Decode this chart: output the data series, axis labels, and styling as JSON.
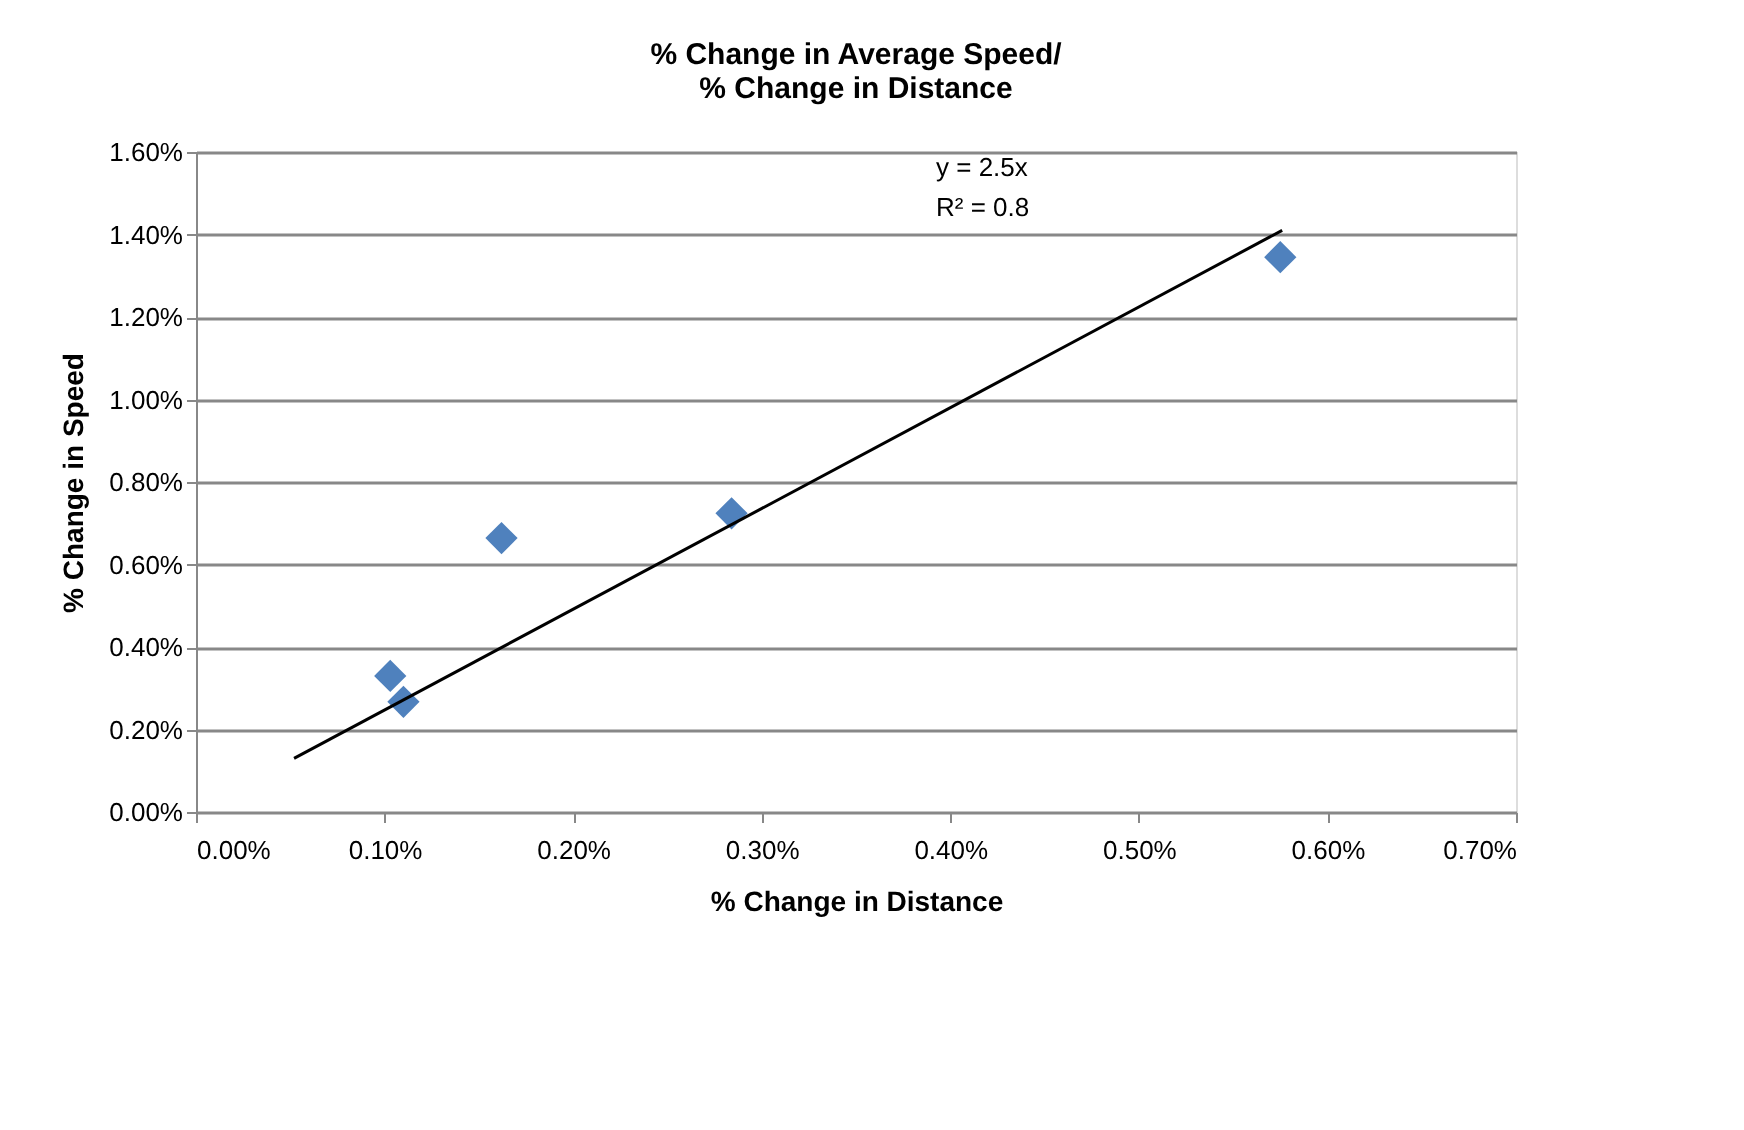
{
  "chart_data": {
    "type": "scatter",
    "title": "% Change in Average Speed/\n% Change in Distance",
    "xlabel": "% Change in Distance",
    "ylabel": "% Change in Speed",
    "series": [
      {
        "color": "#4f81bd",
        "marker": "diamond",
        "x": [
          0.103,
          0.11,
          0.162,
          0.284,
          0.575
        ],
        "values": [
          0.33,
          0.267,
          0.664,
          0.724,
          1.345
        ]
      },
      {
        "type": "line",
        "color": "#000000",
        "marker": "none",
        "line_style": "solid",
        "x": [
          0.052,
          0.576
        ],
        "values": [
          0.13,
          1.41
        ]
      }
    ],
    "annotations": [
      "y = 2.5x",
      "R² = 0.8"
    ],
    "xlim": [
      0,
      0.7
    ],
    "ylim": [
      0,
      1.6
    ],
    "xticks": [
      {
        "value": 0,
        "label": "0.00%"
      },
      {
        "value": 0.1,
        "label": "0.10%"
      },
      {
        "value": 0.2,
        "label": "0.20%"
      },
      {
        "value": 0.3,
        "label": "0.30%"
      },
      {
        "value": 0.4,
        "label": "0.40%"
      },
      {
        "value": 0.5,
        "label": "0.50%"
      },
      {
        "value": 0.6,
        "label": "0.60%"
      },
      {
        "value": 0.7,
        "label": "0.70%"
      }
    ],
    "yticks": [
      {
        "value": 0,
        "label": "0.00%"
      },
      {
        "value": 0.2,
        "label": "0.20%"
      },
      {
        "value": 0.4,
        "label": "0.40%"
      },
      {
        "value": 0.6,
        "label": "0.60%"
      },
      {
        "value": 0.8,
        "label": "0.80%"
      },
      {
        "value": 1.0,
        "label": "1.00%"
      },
      {
        "value": 1.2,
        "label": "1.20%"
      },
      {
        "value": 1.4,
        "label": "1.40%"
      },
      {
        "value": 1.6,
        "label": "1.60%"
      }
    ],
    "grid": "y"
  }
}
